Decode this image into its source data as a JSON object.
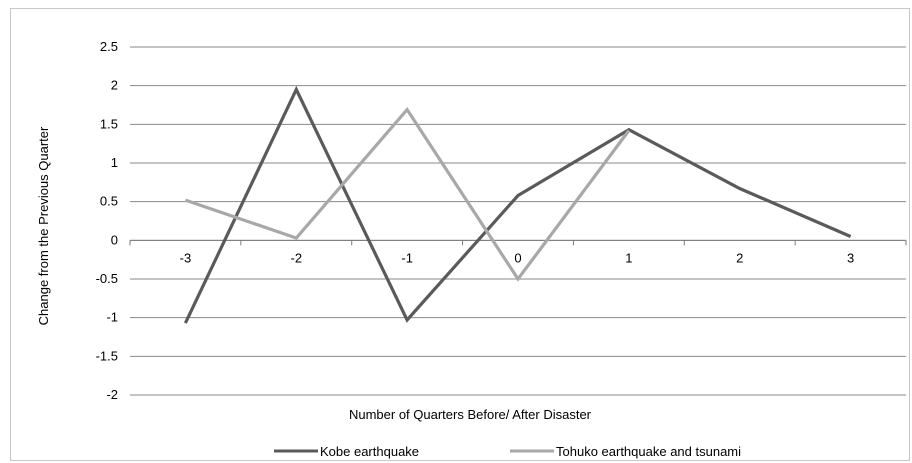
{
  "chart_data": {
    "type": "line",
    "title": "",
    "xlabel": "Number of Quarters Before/ After Disaster",
    "ylabel": "Change from the Previous Quarter",
    "categories": [
      "-3",
      "-2",
      "-1",
      "0",
      "1",
      "2",
      "3"
    ],
    "y_ticks": [
      "2.5",
      "2",
      "1.5",
      "1",
      "0.5",
      "0",
      "-0.5",
      "-1",
      "-1.5",
      "-2"
    ],
    "ylim": [
      -2,
      2.5
    ],
    "grid": true,
    "legend_position": "bottom",
    "series": [
      {
        "name": "Kobe earthquake",
        "color": "#5a5a5a",
        "values": [
          -1.07,
          1.95,
          -1.03,
          0.58,
          1.43,
          0.67,
          0.05
        ]
      },
      {
        "name": "Tohuko earthquake and tsunami",
        "color": "#a8a8a8",
        "values": [
          0.52,
          0.03,
          1.69,
          -0.5,
          1.42,
          null,
          null
        ]
      }
    ]
  }
}
